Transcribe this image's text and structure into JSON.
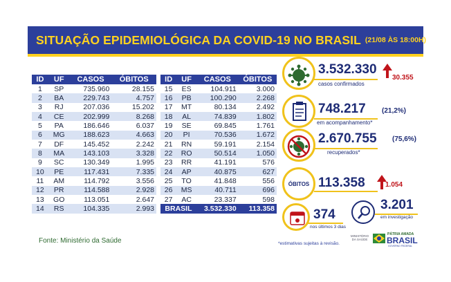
{
  "banner": {
    "title": "SITUAÇÃO EPIDEMIOLÓGICA DA COVID-19 NO BRASIL",
    "date": "(21/08 ÀS 18:00H)"
  },
  "table": {
    "headers": [
      "ID",
      "UF",
      "CASOS",
      "ÓBITOS"
    ],
    "rows_left": [
      [
        "1",
        "SP",
        "735.960",
        "28.155"
      ],
      [
        "2",
        "BA",
        "229.743",
        "4.757"
      ],
      [
        "3",
        "RJ",
        "207.036",
        "15.202"
      ],
      [
        "4",
        "CE",
        "202.999",
        "8.268"
      ],
      [
        "5",
        "PA",
        "186.646",
        "6.037"
      ],
      [
        "6",
        "MG",
        "188.623",
        "4.663"
      ],
      [
        "7",
        "DF",
        "145.452",
        "2.242"
      ],
      [
        "8",
        "MA",
        "143.103",
        "3.328"
      ],
      [
        "9",
        "SC",
        "130.349",
        "1.995"
      ],
      [
        "10",
        "PE",
        "117.431",
        "7.335"
      ],
      [
        "11",
        "AM",
        "114.792",
        "3.556"
      ],
      [
        "12",
        "PR",
        "114.588",
        "2.928"
      ],
      [
        "13",
        "GO",
        "113.051",
        "2.647"
      ],
      [
        "14",
        "RS",
        "104.335",
        "2.993"
      ]
    ],
    "rows_right": [
      [
        "15",
        "ES",
        "104.911",
        "3.000"
      ],
      [
        "16",
        "PB",
        "100.290",
        "2.268"
      ],
      [
        "17",
        "MT",
        "80.134",
        "2.492"
      ],
      [
        "18",
        "AL",
        "74.839",
        "1.802"
      ],
      [
        "19",
        "SE",
        "69.845",
        "1.761"
      ],
      [
        "20",
        "PI",
        "70.536",
        "1.672"
      ],
      [
        "21",
        "RN",
        "59.191",
        "2.154"
      ],
      [
        "22",
        "RO",
        "50.514",
        "1.050"
      ],
      [
        "23",
        "RR",
        "41.191",
        "576"
      ],
      [
        "24",
        "AP",
        "40.875",
        "627"
      ],
      [
        "25",
        "TO",
        "41.848",
        "556"
      ],
      [
        "26",
        "MS",
        "40.711",
        "696"
      ],
      [
        "27",
        "AC",
        "23.337",
        "598"
      ]
    ],
    "total": {
      "label": "BRASIL",
      "casos": "3.532.330",
      "obitos": "113.358"
    }
  },
  "source": "Fonte: Ministério da Saúde",
  "stats": {
    "confirmed": {
      "value": "3.532.330",
      "label": "casos confirmados",
      "delta": "30.355",
      "icon": "virus-icon"
    },
    "monitoring": {
      "value": "748.217",
      "pct": "(21,2%)",
      "label": "em acompanhamento*",
      "icon": "clipboard-icon"
    },
    "recovered": {
      "value": "2.670.755",
      "pct": "(75,6%)",
      "label": "recuperados*",
      "icon": "crossed-virus-icon"
    },
    "deaths": {
      "title": "ÓBITOS",
      "value": "113.358",
      "delta": "1.054"
    },
    "last3": {
      "value": "374",
      "label": "nos últimos 3 dias",
      "icon": "calendar-icon"
    },
    "investigation": {
      "value": "3.201",
      "label": "em investigação",
      "icon": "magnifier-icon"
    }
  },
  "footnote": "*estimativas sujeitas à revisão.",
  "logos": {
    "ministry": "MINISTÉRIO DA SAÚDE",
    "patria": "PÁTRIA AMADA",
    "brasil": "BRASIL",
    "gov": "GOVERNO FEDERAL"
  },
  "colors": {
    "navy": "#2c3f9b",
    "yellow": "#ffd21f",
    "stripe": "#d9e2f3",
    "red": "#c0141a"
  }
}
